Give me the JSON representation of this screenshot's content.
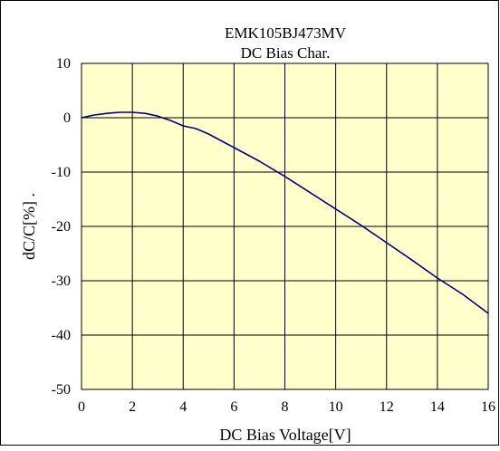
{
  "chart_data": {
    "type": "line",
    "title": "EMK105BJ473MV",
    "subtitle": "DC Bias Char.",
    "xlabel": "DC Bias Voltage[V]",
    "ylabel": "dC/C[%] .",
    "xlim": [
      0,
      16
    ],
    "ylim": [
      -50,
      10
    ],
    "xticks": [
      "0",
      "2",
      "4",
      "6",
      "8",
      "10",
      "12",
      "14",
      "16"
    ],
    "yticks": [
      "10",
      "0",
      "-10",
      "-20",
      "-30",
      "-40",
      "-50"
    ],
    "grid": true,
    "plot_background": "#FFFFCC",
    "line_color": "#000080",
    "series": [
      {
        "x": [
          0,
          0.5,
          1,
          1.5,
          2,
          2.5,
          3,
          3.5,
          4,
          4.5,
          5,
          6,
          7,
          8,
          9,
          10,
          11,
          12,
          13,
          14,
          15,
          16
        ],
        "values": [
          0,
          0.5,
          0.8,
          1.0,
          1.0,
          0.8,
          0.3,
          -0.5,
          -1.5,
          -2.0,
          -3.0,
          -5.5,
          -8.0,
          -10.8,
          -13.8,
          -16.8,
          -19.8,
          -23.0,
          -26.2,
          -29.5,
          -32.5,
          -36.0
        ]
      }
    ]
  }
}
